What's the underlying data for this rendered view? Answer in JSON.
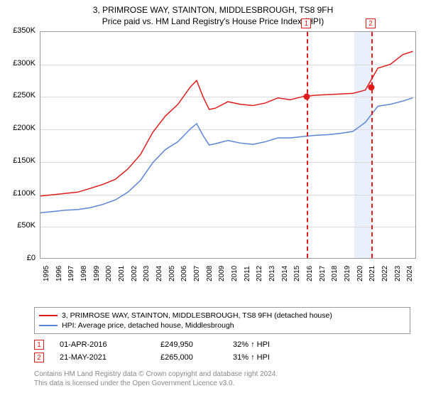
{
  "title_line1": "3, PRIMROSE WAY, STAINTON, MIDDLESBROUGH, TS8 9FH",
  "title_line2": "Price paid vs. HM Land Registry's House Price Index (HPI)",
  "title_fontsize": 12,
  "chart": {
    "type": "line",
    "background_color": "#ffffff",
    "grid_color": "#d9d9d9",
    "ylim": [
      0,
      350000
    ],
    "ytick_step": 50000,
    "yticklabels": [
      "£0",
      "£50K",
      "£100K",
      "£150K",
      "£200K",
      "£250K",
      "£300K",
      "£350K"
    ],
    "xlim": [
      1995,
      2025
    ],
    "xticks": [
      1995,
      1996,
      1997,
      1998,
      1999,
      2000,
      2001,
      2002,
      2003,
      2004,
      2005,
      2006,
      2007,
      2008,
      2009,
      2010,
      2011,
      2012,
      2013,
      2014,
      2015,
      2016,
      2017,
      2018,
      2019,
      2020,
      2021,
      2022,
      2023,
      2024
    ],
    "label_fontsize": 11,
    "tick_fontsize": 10,
    "highlight_band": {
      "x_from": 2020.0,
      "x_to": 2021.4,
      "color": "#e9effb"
    },
    "vlines": [
      {
        "x": 2016.25,
        "color": "#e11b1b",
        "badge": "1"
      },
      {
        "x": 2021.38,
        "color": "#e11b1b",
        "badge": "2"
      }
    ],
    "markers": [
      {
        "x": 2016.25,
        "y": 249950,
        "color": "#e11b1b"
      },
      {
        "x": 2021.38,
        "y": 265000,
        "color": "#e11b1b"
      }
    ],
    "series": [
      {
        "name": "price_paid",
        "label": "3, PRIMROSE WAY, STAINTON, MIDDLESBROUGH, TS8 9FH (detached house)",
        "color": "#e11b1b",
        "line_width": 1.5,
        "x": [
          1995,
          1996,
          1997,
          1998,
          1999,
          2000,
          2001,
          2002,
          2003,
          2004,
          2005,
          2006,
          2007,
          2007.5,
          2008,
          2008.5,
          2009,
          2010,
          2011,
          2012,
          2013,
          2014,
          2015,
          2016,
          2017,
          2018,
          2019,
          2020,
          2021,
          2022,
          2023,
          2024,
          2024.8
        ],
        "y": [
          96000,
          98000,
          100000,
          102000,
          108000,
          114000,
          122000,
          138000,
          160000,
          195000,
          220000,
          238000,
          265000,
          275000,
          250000,
          230000,
          232000,
          242000,
          238000,
          236000,
          240000,
          248000,
          245000,
          250000,
          252000,
          253000,
          254000,
          255000,
          260000,
          294000,
          300000,
          315000,
          320000
        ]
      },
      {
        "name": "hpi",
        "label": "HPI: Average price, detached house, Middlesbrough",
        "color": "#5b85d6",
        "line_width": 1.5,
        "x": [
          1995,
          1996,
          1997,
          1998,
          1999,
          2000,
          2001,
          2002,
          2003,
          2004,
          2005,
          2006,
          2007,
          2007.5,
          2008,
          2008.5,
          2009,
          2010,
          2011,
          2012,
          2013,
          2014,
          2015,
          2016,
          2017,
          2018,
          2019,
          2020,
          2021,
          2022,
          2023,
          2024,
          2024.8
        ],
        "y": [
          70000,
          72000,
          74000,
          75000,
          78000,
          83000,
          90000,
          102000,
          120000,
          148000,
          168000,
          180000,
          200000,
          208000,
          190000,
          175000,
          177000,
          182000,
          178000,
          176000,
          180000,
          186000,
          186000,
          188000,
          190000,
          191000,
          193000,
          196000,
          210000,
          235000,
          238000,
          243000,
          248000
        ]
      }
    ]
  },
  "legend": {
    "items": [
      {
        "color": "#e11b1b",
        "label": "3, PRIMROSE WAY, STAINTON, MIDDLESBROUGH, TS8 9FH (detached house)"
      },
      {
        "color": "#5b85d6",
        "label": "HPI: Average price, detached house, Middlesbrough"
      }
    ]
  },
  "sales": [
    {
      "badge": "1",
      "date": "01-APR-2016",
      "price": "£249,950",
      "hpi": "32% ↑ HPI"
    },
    {
      "badge": "2",
      "date": "21-MAY-2021",
      "price": "£265,000",
      "hpi": "31% ↑ HPI"
    }
  ],
  "footer_line1": "Contains HM Land Registry data © Crown copyright and database right 2024.",
  "footer_line2": "This data is licensed under the Open Government Licence v3.0."
}
